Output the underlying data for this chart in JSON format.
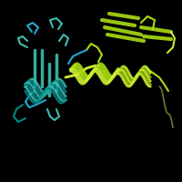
{
  "background_color": "#000000",
  "figsize": [
    2.0,
    2.0
  ],
  "dpi": 100,
  "cyan": "#3bbfb0",
  "cyan2": "#22aacc",
  "teal": "#008888",
  "lime": "#aadd11",
  "lime2": "#ccee33",
  "yellow_green": "#88bb00",
  "dark_olive": "#888833"
}
